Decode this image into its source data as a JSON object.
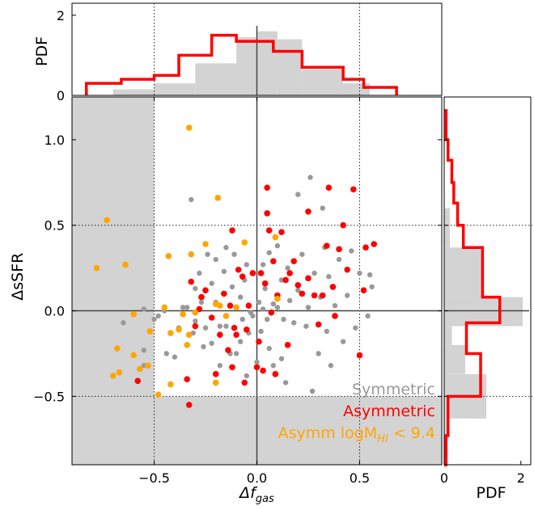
{
  "chart_data": {
    "type": "scatter",
    "xlabel_main": "Δf",
    "xlabel_sub": "gas",
    "ylabel": "ΔsSFR",
    "xlim": [
      -0.9,
      0.9
    ],
    "ylim": [
      -0.9,
      1.25
    ],
    "x_ticks": [
      -0.5,
      0.0,
      0.5
    ],
    "x_tick_labels": [
      "−0.5",
      "0.0",
      "0.5"
    ],
    "y_ticks": [
      -0.5,
      0.0,
      0.5,
      1.0
    ],
    "y_tick_labels": [
      "−0.5",
      "0.0",
      "0.5",
      "1.0"
    ],
    "threshold": {
      "x": -0.5,
      "y_low": -0.5,
      "y_high": 0.5,
      "x_high": 0.5
    },
    "colors": {
      "symmetric": "#999999",
      "asymmetric": "#ff0000",
      "lowhi": "#ffa500",
      "shade": "#d3d3d3"
    },
    "legend": {
      "symmetric": "Symmetric",
      "asymmetric": "Asymmetric",
      "lowhi_prefix": "Asymm logM",
      "lowhi_sub": "HI",
      "lowhi_suffix": " < 9.4"
    },
    "series": [
      {
        "name": "Symmetric",
        "points": [
          [
            -0.65,
            -0.07
          ],
          [
            -0.55,
            -0.23
          ],
          [
            -0.55,
            -0.32
          ],
          [
            -0.55,
            0.01
          ],
          [
            -0.5,
            -0.05
          ],
          [
            -0.45,
            0.0
          ],
          [
            -0.44,
            -0.25
          ],
          [
            -0.4,
            -0.27
          ],
          [
            -0.38,
            -0.1
          ],
          [
            -0.36,
            0.02
          ],
          [
            -0.34,
            0.02
          ],
          [
            -0.32,
            0.65
          ],
          [
            -0.31,
            -0.13
          ],
          [
            -0.3,
            -0.06
          ],
          [
            -0.3,
            0.13
          ],
          [
            -0.28,
            0.22
          ],
          [
            -0.27,
            0.05
          ],
          [
            -0.25,
            -0.1
          ],
          [
            -0.24,
            0.33
          ],
          [
            -0.22,
            -0.19
          ],
          [
            -0.22,
            0.16
          ],
          [
            -0.2,
            0.05
          ],
          [
            -0.2,
            0.3
          ],
          [
            -0.18,
            -0.32
          ],
          [
            -0.18,
            -0.09
          ],
          [
            -0.16,
            0.23
          ],
          [
            -0.15,
            -0.09
          ],
          [
            -0.13,
            -0.25
          ],
          [
            -0.12,
            0.14
          ],
          [
            -0.11,
            0.33
          ],
          [
            -0.1,
            -0.25
          ],
          [
            -0.1,
            0.02
          ],
          [
            -0.08,
            -0.18
          ],
          [
            -0.08,
            0.08
          ],
          [
            -0.06,
            0.18
          ],
          [
            -0.05,
            0.27
          ],
          [
            -0.05,
            -0.38
          ],
          [
            -0.04,
            -0.13
          ],
          [
            -0.03,
            -0.01
          ],
          [
            -0.02,
            0.22
          ],
          [
            0.0,
            -0.3
          ],
          [
            0.01,
            0.05
          ],
          [
            0.02,
            -0.12
          ],
          [
            0.03,
            0.01
          ],
          [
            0.04,
            0.13
          ],
          [
            0.05,
            -0.05
          ],
          [
            0.06,
            -0.22
          ],
          [
            0.06,
            0.34
          ],
          [
            0.08,
            -0.32
          ],
          [
            0.1,
            0.38
          ],
          [
            0.1,
            0.02
          ],
          [
            0.12,
            0.18
          ],
          [
            0.13,
            -0.05
          ],
          [
            0.14,
            -0.42
          ],
          [
            0.15,
            0.25
          ],
          [
            0.16,
            0.06
          ],
          [
            0.18,
            -0.07
          ],
          [
            0.2,
            0.12
          ],
          [
            0.2,
            0.68
          ],
          [
            0.22,
            0.33
          ],
          [
            0.24,
            -0.09
          ],
          [
            0.25,
            0.02
          ],
          [
            0.27,
            -0.47
          ],
          [
            0.28,
            0.22
          ],
          [
            0.3,
            -0.25
          ],
          [
            0.31,
            0.08
          ],
          [
            0.32,
            0.6
          ],
          [
            0.34,
            -0.12
          ],
          [
            0.35,
            0.2
          ],
          [
            0.36,
            -0.32
          ],
          [
            0.38,
            0.03
          ],
          [
            0.4,
            0.3
          ],
          [
            0.42,
            -0.18
          ],
          [
            0.44,
            0.09
          ],
          [
            0.46,
            0.35
          ],
          [
            0.48,
            -0.1
          ],
          [
            0.5,
            0.22
          ],
          [
            0.54,
            -0.03
          ],
          [
            0.55,
            0.21
          ],
          [
            0.56,
            0.14
          ],
          [
            -0.02,
            -0.03
          ],
          [
            -0.07,
            -0.05
          ],
          [
            0.08,
            0.04
          ],
          [
            0.26,
            0.78
          ],
          [
            -0.48,
            -0.03
          ],
          [
            0.12,
            -0.28
          ],
          [
            -0.15,
            0.37
          ],
          [
            0.33,
            0.37
          ],
          [
            -0.26,
            -0.21
          ],
          [
            0.03,
            0.27
          ]
        ]
      },
      {
        "name": "Asymmetric",
        "points": [
          [
            -0.58,
            -0.41
          ],
          [
            -0.34,
            -0.4
          ],
          [
            -0.33,
            -0.55
          ],
          [
            -0.32,
            0.17
          ],
          [
            -0.3,
            -0.09
          ],
          [
            -0.28,
            0.01
          ],
          [
            -0.27,
            0.08
          ],
          [
            -0.25,
            0.12
          ],
          [
            -0.22,
            -0.04
          ],
          [
            -0.2,
            -0.37
          ],
          [
            -0.18,
            -0.14
          ],
          [
            -0.16,
            0.1
          ],
          [
            -0.14,
            -0.23
          ],
          [
            -0.13,
            0.03
          ],
          [
            -0.12,
            -0.33
          ],
          [
            -0.12,
            0.47
          ],
          [
            -0.11,
            -0.1
          ],
          [
            -0.09,
            0.24
          ],
          [
            -0.07,
            0.2
          ],
          [
            -0.06,
            -0.42
          ],
          [
            -0.05,
            -0.11
          ],
          [
            -0.04,
            0.03
          ],
          [
            -0.02,
            0.22
          ],
          [
            0.0,
            -0.33
          ],
          [
            0.01,
            -0.18
          ],
          [
            0.02,
            0.22
          ],
          [
            0.03,
            -0.35
          ],
          [
            0.04,
            0.16
          ],
          [
            0.05,
            0.57
          ],
          [
            0.05,
            0.72
          ],
          [
            0.06,
            0.47
          ],
          [
            0.07,
            -0.01
          ],
          [
            0.08,
            0.29
          ],
          [
            0.1,
            0.09
          ],
          [
            0.12,
            0.46
          ],
          [
            0.14,
            0.18
          ],
          [
            0.15,
            -0.2
          ],
          [
            0.16,
            0.22
          ],
          [
            0.18,
            0.29
          ],
          [
            0.2,
            0.15
          ],
          [
            0.22,
            0.1
          ],
          [
            0.25,
            0.19
          ],
          [
            0.25,
            0.58
          ],
          [
            0.28,
            0.09
          ],
          [
            0.3,
            -0.08
          ],
          [
            0.32,
            0.09
          ],
          [
            0.34,
            0.38
          ],
          [
            0.35,
            0.72
          ],
          [
            0.37,
            0.14
          ],
          [
            0.38,
            -0.03
          ],
          [
            0.4,
            0.36
          ],
          [
            0.42,
            0.5
          ],
          [
            0.44,
            0.24
          ],
          [
            0.47,
            0.71
          ],
          [
            0.5,
            -0.26
          ],
          [
            0.52,
            0.12
          ],
          [
            0.53,
            0.37
          ],
          [
            0.57,
            0.39
          ],
          [
            -0.1,
            -0.14
          ],
          [
            0.09,
            -0.37
          ]
        ]
      },
      {
        "name": "Asymm logM_HI < 9.4",
        "points": [
          [
            -0.78,
            0.25
          ],
          [
            -0.73,
            0.53
          ],
          [
            -0.7,
            -0.38
          ],
          [
            -0.68,
            -0.22
          ],
          [
            -0.67,
            -0.36
          ],
          [
            -0.64,
            0.27
          ],
          [
            -0.6,
            -0.02
          ],
          [
            -0.6,
            -0.26
          ],
          [
            -0.57,
            -0.34
          ],
          [
            -0.53,
            -0.32
          ],
          [
            -0.52,
            -0.12
          ],
          [
            -0.48,
            -0.49
          ],
          [
            -0.45,
            0.02
          ],
          [
            -0.43,
            0.32
          ],
          [
            -0.42,
            -0.13
          ],
          [
            -0.42,
            -0.43
          ],
          [
            -0.38,
            -0.11
          ],
          [
            -0.36,
            -0.02
          ],
          [
            -0.34,
            -0.2
          ],
          [
            -0.33,
            1.07
          ],
          [
            -0.33,
            -0.14
          ],
          [
            -0.32,
            0.33
          ],
          [
            -0.3,
            -0.01
          ],
          [
            -0.25,
            0.39
          ],
          [
            -0.2,
            0.04
          ],
          [
            -0.2,
            -0.42
          ],
          [
            -0.19,
            0.66
          ],
          [
            -0.18,
            0.03
          ],
          [
            -0.15,
            -0.03
          ],
          [
            -0.1,
            0.02
          ],
          [
            -0.06,
            0.4
          ],
          [
            0.09,
            0.43
          ],
          [
            0.1,
            0.07
          ]
        ]
      }
    ],
    "hist_top": {
      "ylabel": "PDF",
      "ylim": [
        0,
        2.3
      ],
      "y_ticks": [
        0,
        2
      ],
      "y_tick_labels": [
        "0",
        "2"
      ],
      "edges": [
        -0.9,
        -0.8,
        -0.7,
        -0.6,
        -0.5,
        -0.4,
        -0.3,
        -0.2,
        -0.1,
        0.0,
        0.1,
        0.2,
        0.3,
        0.4,
        0.5,
        0.6,
        0.7,
        0.8,
        0.9
      ],
      "symmetric_edges": [
        -0.7,
        -0.5,
        -0.3,
        -0.1,
        0.0,
        0.1,
        0.22,
        0.42,
        0.55
      ],
      "symmetric": [
        0.15,
        0.3,
        0.8,
        1.45,
        1.6,
        1.4,
        0.65,
        0.3
      ],
      "asymmetric_edges": [
        -0.83,
        -0.66,
        -0.5,
        -0.38,
        -0.22,
        -0.1,
        0.08,
        0.22,
        0.42,
        0.52,
        0.68
      ],
      "asymmetric": [
        0.3,
        0.4,
        0.5,
        1.0,
        1.5,
        1.35,
        1.1,
        0.7,
        0.4,
        0.2
      ]
    },
    "hist_right": {
      "xlabel": "PDF",
      "xlim": [
        0,
        2.3
      ],
      "x_ticks": [
        0,
        2
      ],
      "x_tick_labels": [
        "0",
        "2"
      ],
      "symmetric_edges": [
        -0.92,
        -0.75,
        -0.63,
        -0.37,
        -0.2,
        -0.09,
        0.08,
        0.37,
        0.6
      ],
      "symmetric": [
        0.05,
        0.08,
        1.1,
        0.55,
        0.2,
        2.05,
        1.0,
        0.15
      ],
      "asymmetric_edges": [
        -0.9,
        -0.73,
        -0.5,
        -0.25,
        -0.07,
        0.08,
        0.37,
        0.5,
        0.63,
        0.75,
        0.88,
        1.0,
        1.17
      ],
      "asymmetric": [
        0.05,
        0.1,
        0.95,
        0.58,
        1.45,
        1.0,
        0.5,
        0.35,
        0.25,
        0.2,
        0.1,
        0.05
      ]
    }
  }
}
